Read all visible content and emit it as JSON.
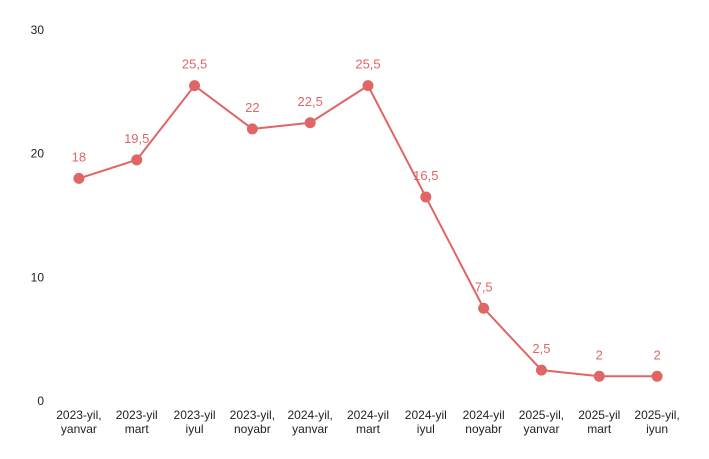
{
  "chart_data": {
    "type": "line",
    "title": "",
    "xlabel": "",
    "ylabel": "",
    "categories": [
      [
        "2023-yil,",
        "yanvar"
      ],
      [
        "2023-yil",
        "mart"
      ],
      [
        "2023-yil",
        "iyul"
      ],
      [
        "2023-yil,",
        "noyabr"
      ],
      [
        "2024-yil,",
        "yanvar"
      ],
      [
        "2024-yil",
        "mart"
      ],
      [
        "2024-yil",
        "iyul"
      ],
      [
        "2024-yil",
        "noyabr"
      ],
      [
        "2025-yil,",
        "yanvar"
      ],
      [
        "2025-yil",
        "mart"
      ],
      [
        "2025-yil,",
        "iyun"
      ]
    ],
    "series": [
      {
        "values": [
          18,
          19.5,
          25.5,
          22,
          22.5,
          25.5,
          16.5,
          7.5,
          2.5,
          2,
          2
        ],
        "value_labels": [
          "18",
          "19,5",
          "25,5",
          "22",
          "22,5",
          "25,5",
          "16,5",
          "7,5",
          "2,5",
          "2",
          "2"
        ],
        "color": "#e06666"
      }
    ],
    "ylim": [
      0,
      30
    ],
    "yticks": [
      0,
      10,
      20,
      30
    ],
    "ytick_labels": [
      "0",
      "10",
      "20",
      "30"
    ],
    "grid": false,
    "legend": "none"
  }
}
